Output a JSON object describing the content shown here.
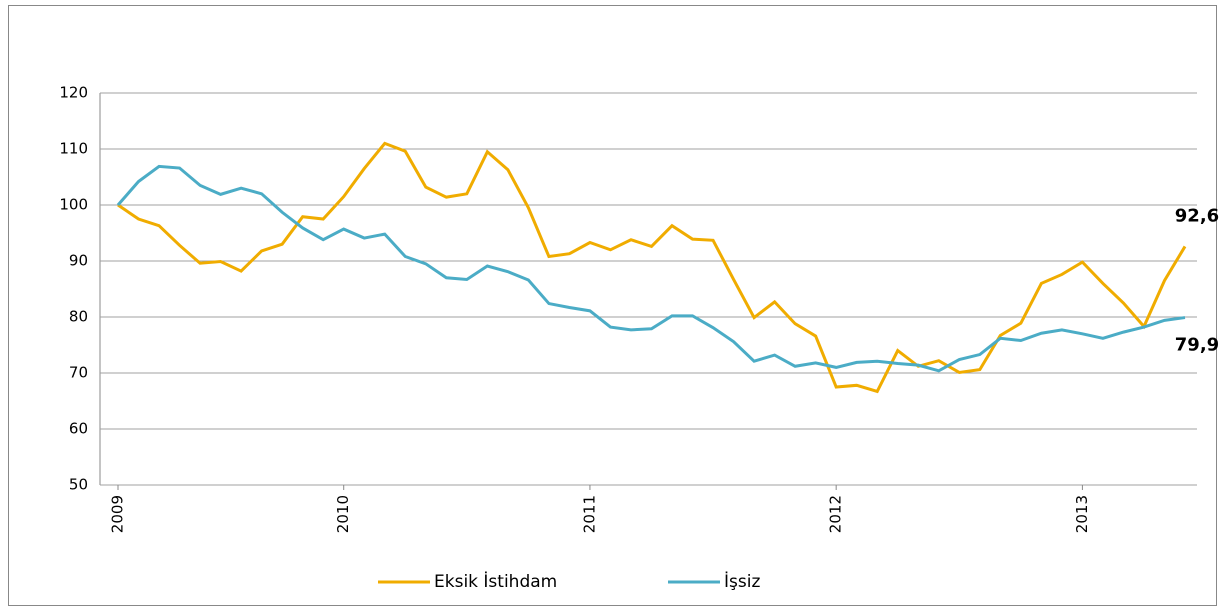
{
  "chart_data": {
    "type": "line",
    "categories": [
      "2009",
      null,
      null,
      null,
      null,
      null,
      null,
      null,
      null,
      null,
      null,
      "2010",
      null,
      null,
      null,
      null,
      null,
      null,
      null,
      null,
      null,
      null,
      null,
      "2011",
      null,
      null,
      null,
      null,
      null,
      null,
      null,
      null,
      null,
      null,
      null,
      "2012",
      null,
      null,
      null,
      null,
      null,
      null,
      null,
      null,
      null,
      null,
      null,
      "2013",
      null,
      null,
      null,
      null,
      null
    ],
    "series": [
      {
        "name": "Eksik İstihdam",
        "color": "#f0ac00",
        "values": [
          100,
          97.5,
          96.3,
          92.8,
          89.6,
          89.9,
          88.2,
          91.8,
          93,
          97.9,
          97.5,
          101.5,
          106.5,
          111,
          109.6,
          103.2,
          101.4,
          102,
          109.5,
          106.3,
          99.5,
          90.8,
          91.3,
          93.3,
          92,
          93.8,
          92.6,
          96.3,
          93.9,
          93.7,
          86.7,
          79.9,
          82.7,
          78.8,
          76.6,
          67.5,
          67.8,
          66.7,
          74,
          71.2,
          72.2,
          70.1,
          70.6,
          76.7,
          78.9,
          86,
          87.6,
          89.8,
          86,
          82.5,
          78.3,
          86.5,
          92.6
        ],
        "value_labels": [
          null,
          null,
          null,
          null,
          null,
          null,
          null,
          null,
          null,
          null,
          null,
          null,
          null,
          null,
          null,
          null,
          null,
          null,
          null,
          null,
          null,
          null,
          null,
          null,
          null,
          null,
          null,
          null,
          null,
          null,
          null,
          null,
          null,
          null,
          null,
          null,
          null,
          null,
          null,
          null,
          null,
          null,
          null,
          null,
          null,
          null,
          null,
          null,
          null,
          null,
          null,
          null,
          "92,6"
        ]
      },
      {
        "name": "İşsiz",
        "color": "#4bacc6",
        "values": [
          100,
          104.2,
          106.9,
          106.6,
          103.5,
          101.9,
          103,
          102,
          98.7,
          95.9,
          93.8,
          95.7,
          94.1,
          94.8,
          90.8,
          89.5,
          87,
          86.7,
          89.1,
          88.1,
          86.6,
          82.4,
          81.7,
          81.1,
          78.2,
          77.7,
          77.9,
          80.2,
          80.2,
          78.1,
          75.6,
          72.1,
          73.2,
          71.2,
          71.8,
          71,
          71.9,
          72.1,
          71.7,
          71.4,
          70.4,
          72.4,
          73.3,
          76.2,
          75.8,
          77.1,
          77.7,
          77,
          76.2,
          77.3,
          78.2,
          79.4,
          79.9
        ],
        "value_labels": [
          null,
          null,
          null,
          null,
          null,
          null,
          null,
          null,
          null,
          null,
          null,
          null,
          null,
          null,
          null,
          null,
          null,
          null,
          null,
          null,
          null,
          null,
          null,
          null,
          null,
          null,
          null,
          null,
          null,
          null,
          null,
          null,
          null,
          null,
          null,
          null,
          null,
          null,
          null,
          null,
          null,
          null,
          null,
          null,
          null,
          null,
          null,
          null,
          null,
          null,
          null,
          null,
          "79,9"
        ]
      }
    ],
    "ylim": [
      50,
      120
    ],
    "yticks": [
      50,
      60,
      70,
      80,
      90,
      100,
      110,
      120
    ],
    "grid": true,
    "legend": "bottom"
  }
}
